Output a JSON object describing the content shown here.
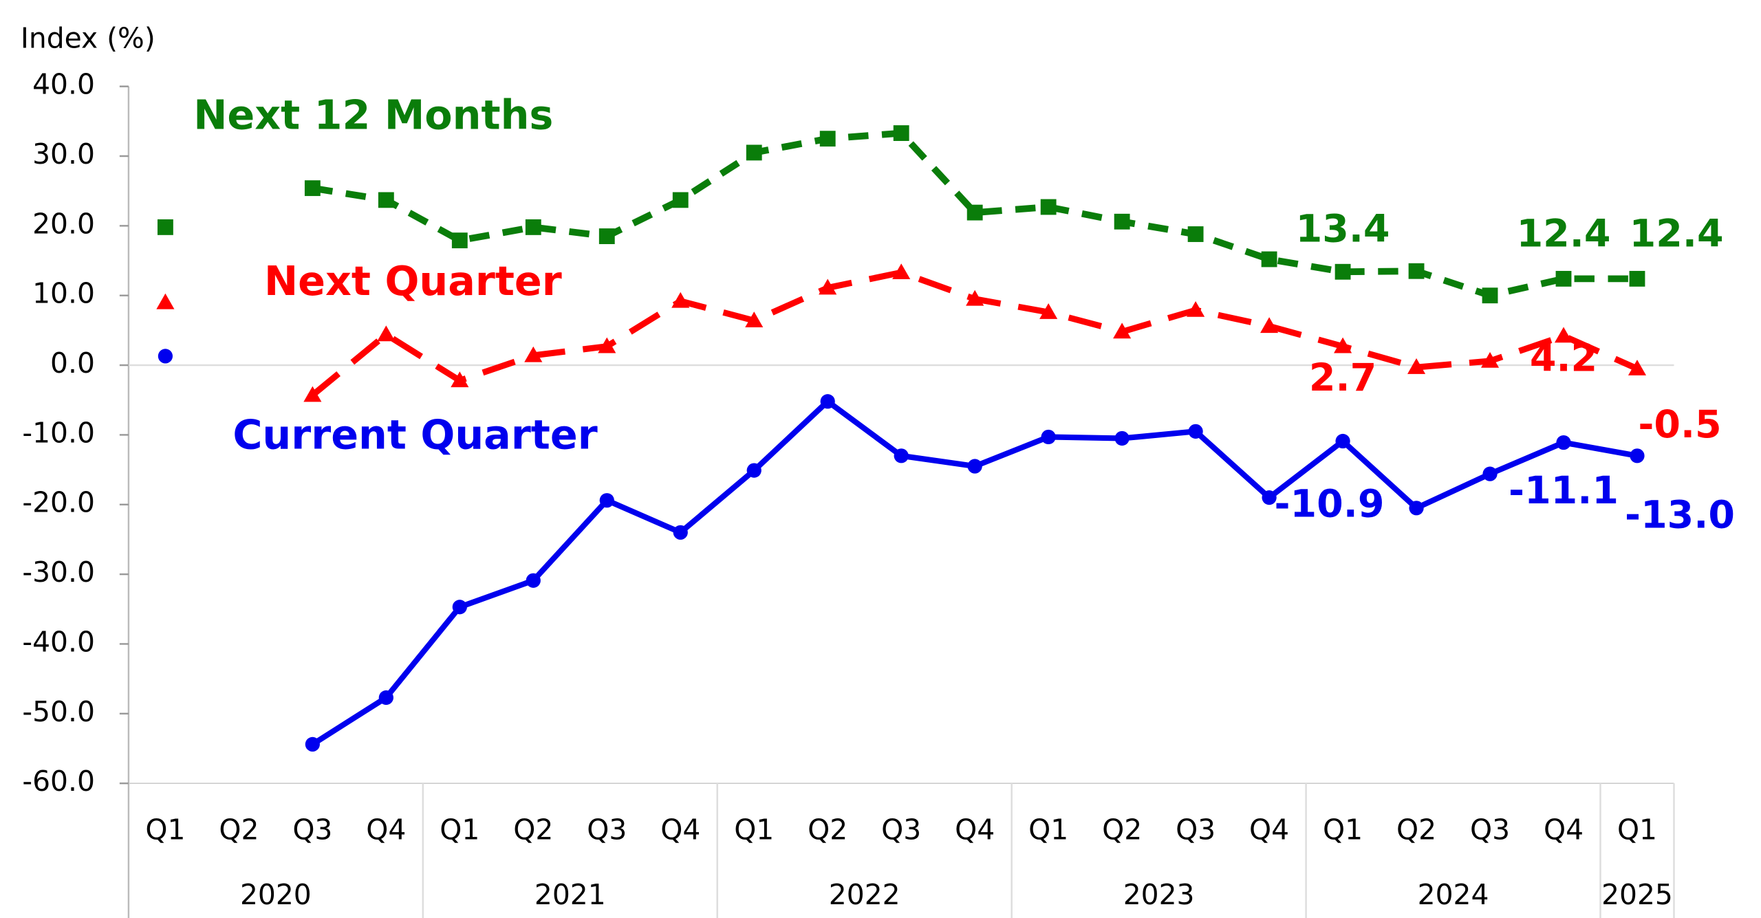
{
  "chart_data": {
    "type": "line",
    "y_axis_label": "Index (%)",
    "categories": [
      "Q1",
      "Q2",
      "Q3",
      "Q4",
      "Q1",
      "Q2",
      "Q3",
      "Q4",
      "Q1",
      "Q2",
      "Q3",
      "Q4",
      "Q1",
      "Q2",
      "Q3",
      "Q4",
      "Q1",
      "Q2",
      "Q3",
      "Q4",
      "Q1"
    ],
    "year_groups": [
      {
        "label": "2020",
        "count": 4
      },
      {
        "label": "2021",
        "count": 4
      },
      {
        "label": "2022",
        "count": 4
      },
      {
        "label": "2023",
        "count": 4
      },
      {
        "label": "2024",
        "count": 4
      },
      {
        "label": "2025",
        "count": 1
      }
    ],
    "ylim": [
      -60,
      40
    ],
    "yticks": [
      {
        "value": -60,
        "label": "-60.0"
      },
      {
        "value": -50,
        "label": "-50.0"
      },
      {
        "value": -40,
        "label": "-40.0"
      },
      {
        "value": -30,
        "label": "-30.0"
      },
      {
        "value": -20,
        "label": "-20.0"
      },
      {
        "value": -10,
        "label": "-10.0"
      },
      {
        "value": 0,
        "label": "0.0"
      },
      {
        "value": 10,
        "label": "10.0"
      },
      {
        "value": 20,
        "label": "20.0"
      },
      {
        "value": 30,
        "label": "30.0"
      },
      {
        "value": 40,
        "label": "40.0"
      }
    ],
    "series": [
      {
        "name": "Next 12 Months",
        "color": "#0a7d0a",
        "marker": "square",
        "values": [
          19.8,
          null,
          25.4,
          23.7,
          17.9,
          19.8,
          18.5,
          23.7,
          30.5,
          32.5,
          33.3,
          21.9,
          22.7,
          20.6,
          18.8,
          15.2,
          13.4,
          13.5,
          10.0,
          12.4,
          12.4
        ],
        "value_labels": [
          null,
          null,
          null,
          null,
          null,
          null,
          null,
          null,
          null,
          null,
          null,
          null,
          null,
          null,
          null,
          null,
          "13.4",
          null,
          null,
          "12.4",
          "12.4"
        ]
      },
      {
        "name": "Next Quarter",
        "color": "#ff0000",
        "marker": "triangle",
        "values": [
          9.0,
          null,
          -4.3,
          4.4,
          -2.2,
          1.4,
          2.7,
          9.2,
          6.4,
          11.1,
          13.3,
          9.5,
          7.6,
          4.8,
          7.9,
          5.6,
          2.7,
          -0.3,
          0.6,
          4.2,
          -0.5
        ],
        "value_labels": [
          null,
          null,
          null,
          null,
          null,
          null,
          null,
          null,
          null,
          null,
          null,
          null,
          null,
          null,
          null,
          null,
          "2.7",
          null,
          null,
          "4.2",
          "-0.5"
        ]
      },
      {
        "name": "Current Quarter",
        "color": "#0000ee",
        "marker": "circle",
        "values": [
          1.3,
          null,
          -54.4,
          -47.7,
          -34.7,
          -30.9,
          -19.4,
          -24.0,
          -15.1,
          -5.2,
          -13.0,
          -14.5,
          -10.3,
          -10.5,
          -9.5,
          -19.0,
          -10.9,
          -20.5,
          -15.6,
          -11.1,
          -13.0
        ],
        "value_labels": [
          null,
          null,
          null,
          null,
          null,
          null,
          null,
          null,
          null,
          null,
          null,
          null,
          null,
          null,
          null,
          null,
          "-10.9",
          null,
          null,
          "-11.1",
          "-13.0"
        ]
      }
    ]
  }
}
